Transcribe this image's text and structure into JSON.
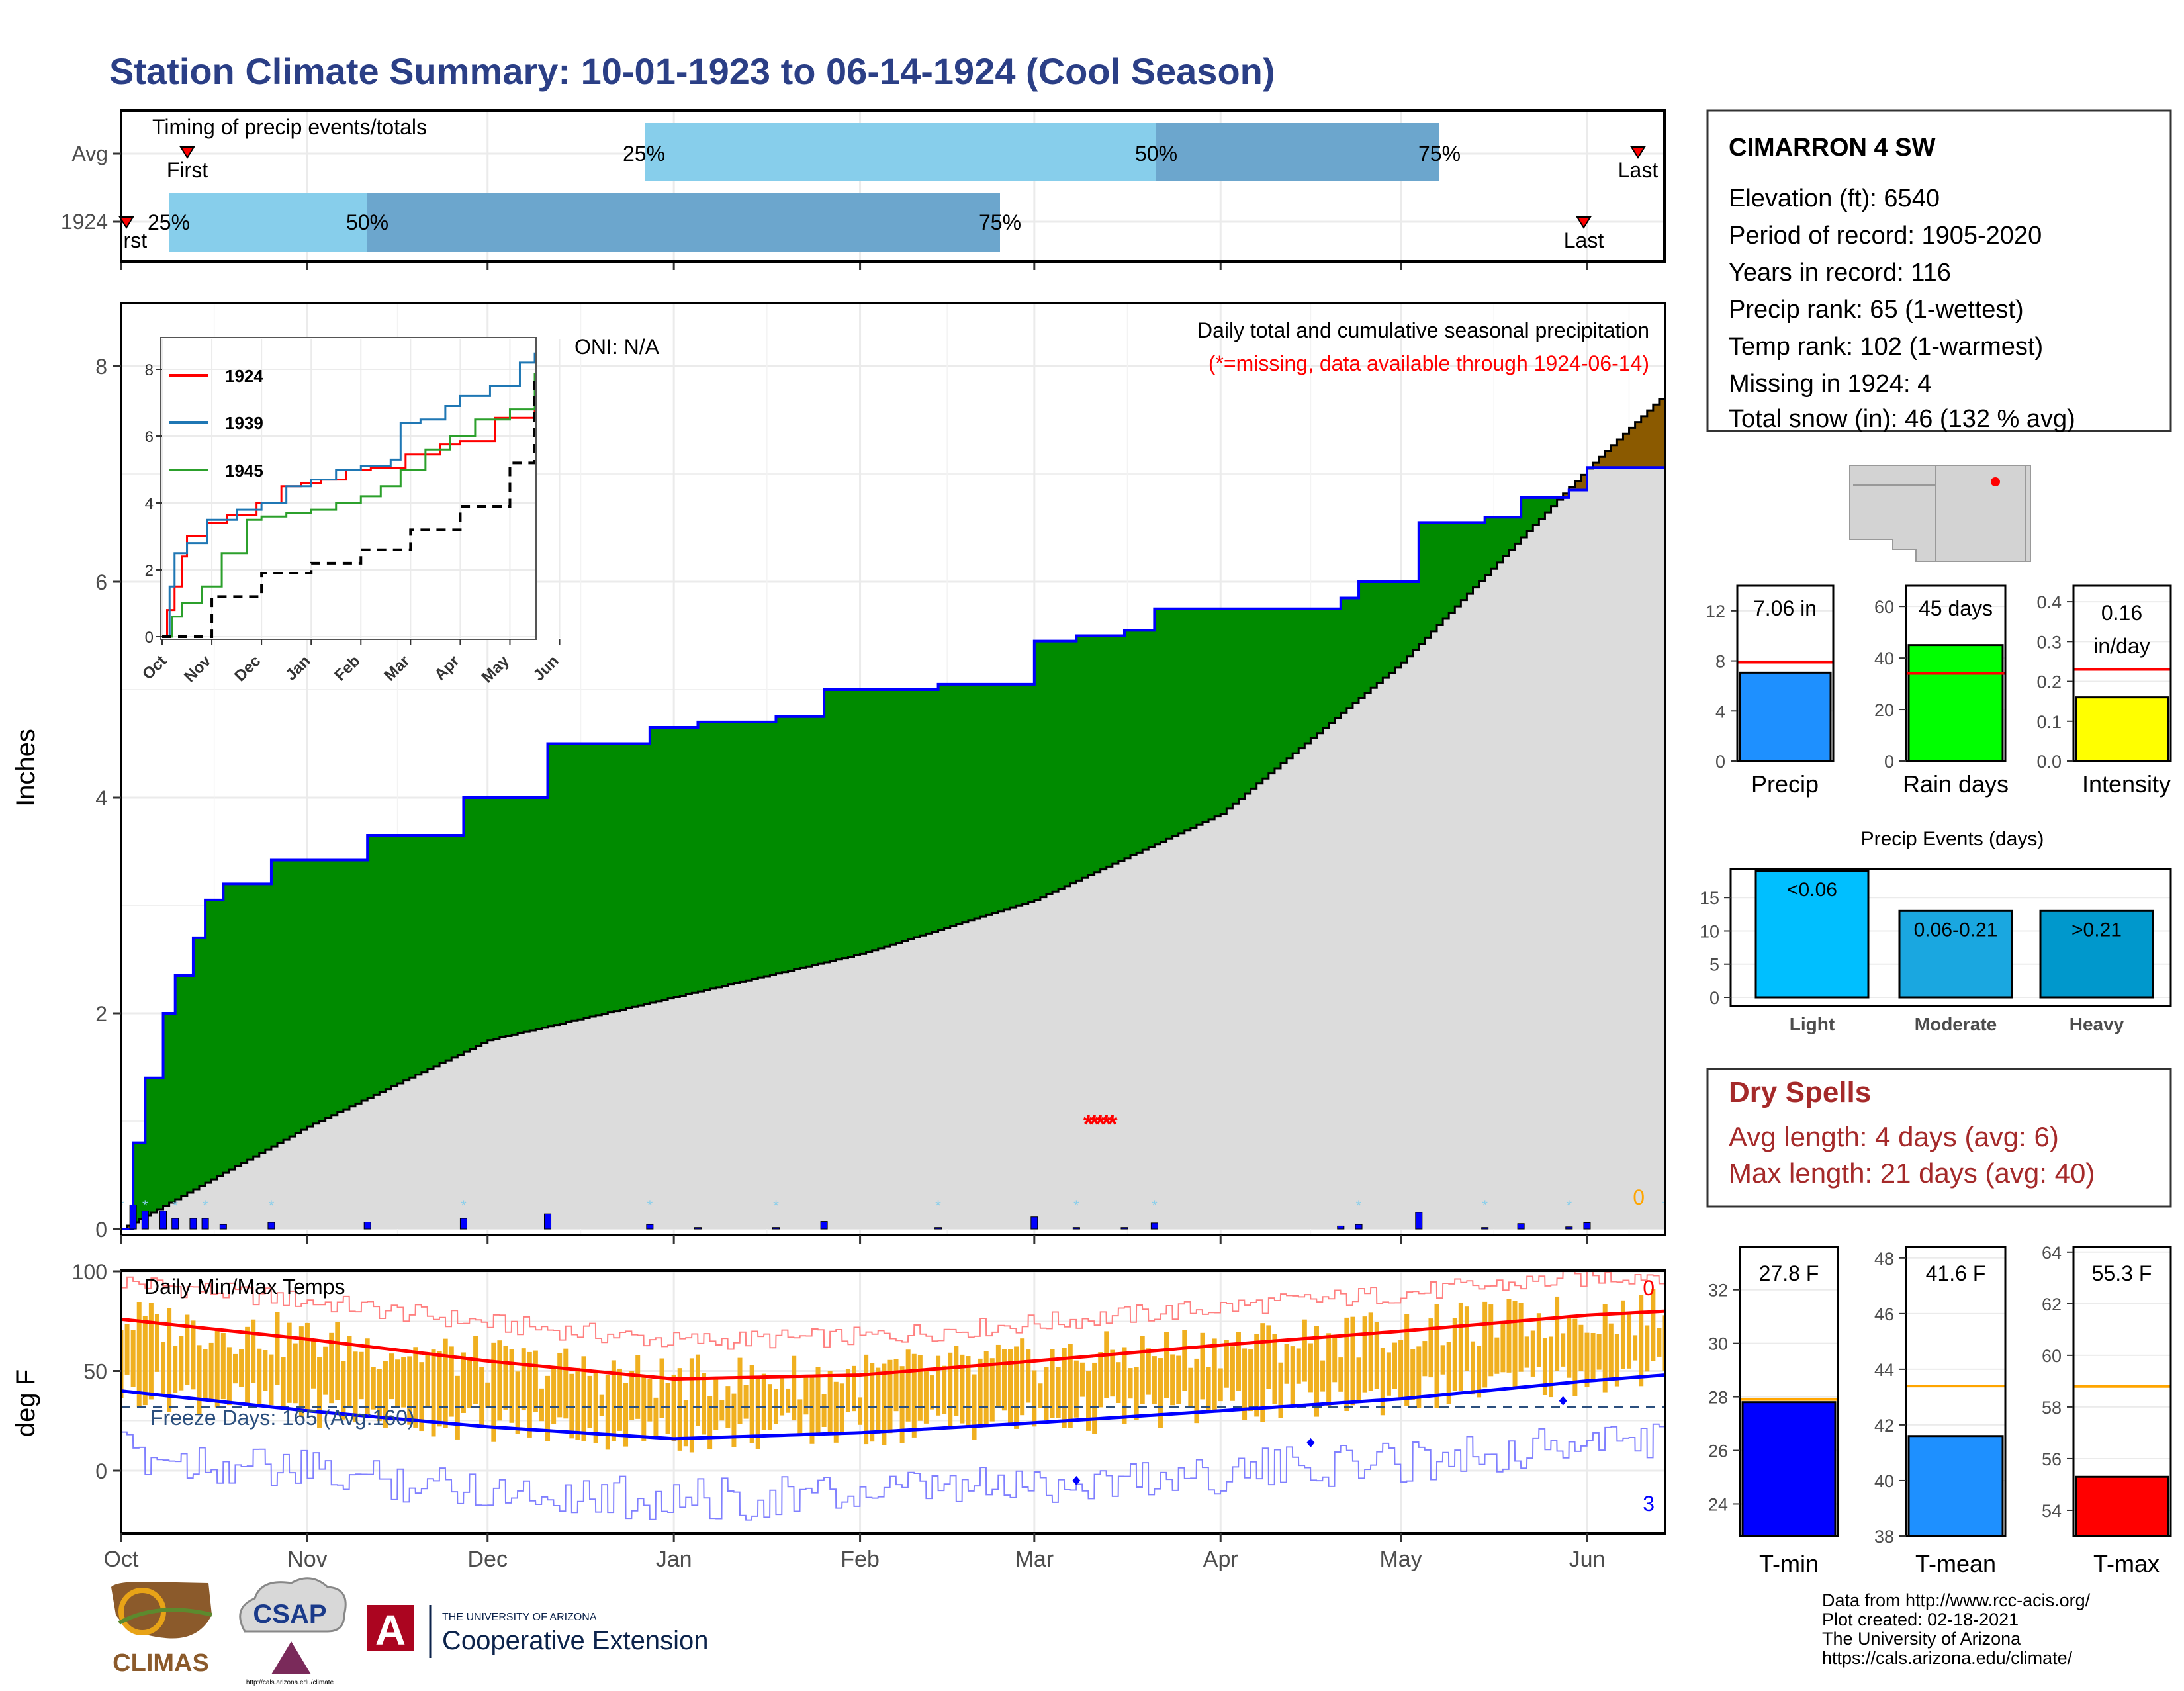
{
  "title": "Station Climate Summary: 10-01-1923 to 06-14-1924 (Cool Season)",
  "colors": {
    "title": "#2b3f86",
    "green": "#008b00",
    "grey_fill": "#dcdcdc",
    "brown": "#8b5a00",
    "blue_line": "#0000ff",
    "light_blue": "#87ceeb",
    "mid_blue": "#6ca6cd",
    "orange_bar": "#f0b020",
    "red": "#ff0000",
    "dark_red": "#a52a2a",
    "precip_bar": "#1e90ff",
    "raindays_bar": "#00ff00",
    "intensity_bar": "#ffff00",
    "tmin_bar": "#0000ff",
    "tmean_bar": "#1e90ff",
    "tmax_bar": "#ff0000",
    "light_events": "#00bfff",
    "moderate_events": "#1aa7e0",
    "heavy_events": "#0098cc"
  },
  "timing": {
    "title": "Timing of precip events/totals",
    "rows": [
      "Avg",
      "1924"
    ],
    "avg": {
      "first_label": "First",
      "last_label": "Last",
      "p25": "25%",
      "p50": "50%",
      "p75": "75%"
    },
    "y1924": {
      "first_label": "First",
      "last_label": "Last",
      "p25": "25%",
      "p50": "50%",
      "p75": "75%"
    }
  },
  "station": {
    "name": "CIMARRON 4 SW",
    "lines": [
      "Elevation (ft): 6540",
      "Period of record: 1905-2020",
      "Years in record: 116",
      "Precip rank: 65 (1-wettest)",
      "Temp rank: 102 (1-warmest)",
      "Missing in 1924: 4",
      "Total snow (in): 46 (132 % avg)"
    ]
  },
  "main": {
    "oni": "ONI: N/A",
    "caption": "Daily total and cumulative seasonal precipitation",
    "missing_note": "(*=missing, data available through 1924-06-14)",
    "ylabel": "Inches",
    "yticks": [
      "0",
      "2",
      "4",
      "6",
      "8"
    ],
    "zero_label": "0",
    "inset": {
      "legend": [
        "1924",
        "1939",
        "1945"
      ],
      "yticks": [
        "0",
        "2",
        "4",
        "6",
        "8"
      ],
      "xticks": [
        "Oct",
        "Nov",
        "Dec",
        "Jan",
        "Feb",
        "Mar",
        "Apr",
        "May",
        "Jun"
      ]
    }
  },
  "temps": {
    "title": "Daily Min/Max Temps",
    "freeze": "Freeze Days: 165 (Avg:160)",
    "ylabel": "deg F",
    "yticks": [
      "0",
      "50",
      "100"
    ],
    "top_count": "0",
    "bottom_count": "3"
  },
  "months": [
    "Oct",
    "Nov",
    "Dec",
    "Jan",
    "Feb",
    "Mar",
    "Apr",
    "May",
    "Jun"
  ],
  "mini_bars": {
    "precip": {
      "value_label": "7.06 in",
      "label": "Precip",
      "yticks": [
        "0",
        "4",
        "8",
        "12"
      ]
    },
    "raindays": {
      "value_label": "45 days",
      "label": "Rain days",
      "yticks": [
        "0",
        "20",
        "40",
        "60"
      ]
    },
    "intensity": {
      "value_label_1": "0.16",
      "value_label_2": "in/day",
      "label": "Intensity",
      "yticks": [
        "0.0",
        "0.1",
        "0.2",
        "0.3",
        "0.4"
      ]
    }
  },
  "events": {
    "title": "Precip Events (days)",
    "categories": [
      "Light",
      "Moderate",
      "Heavy"
    ],
    "bar_labels": [
      "<0.06",
      "0.06-0.21",
      ">0.21"
    ],
    "yticks": [
      "0",
      "5",
      "10",
      "15"
    ]
  },
  "dry": {
    "title": "Dry Spells",
    "avg": "Avg length: 4 days (avg: 6)",
    "max": "Max length: 21 days (avg: 40)"
  },
  "temp_bars": {
    "tmin": {
      "value_label": "27.8 F",
      "label": "T-min",
      "yticks": [
        "24",
        "26",
        "28",
        "30",
        "32"
      ]
    },
    "tmean": {
      "value_label": "41.6 F",
      "label": "T-mean",
      "yticks": [
        "38",
        "40",
        "42",
        "44",
        "46",
        "48"
      ]
    },
    "tmax": {
      "value_label": "55.3 F",
      "label": "T-max",
      "yticks": [
        "54",
        "56",
        "58",
        "60",
        "62",
        "64"
      ]
    }
  },
  "logos": {
    "climas": "CLIMAS",
    "csap": "CSAP",
    "csap_url": "http://cals.arizona.edu/climate",
    "ua_small": "THE UNIVERSITY OF ARIZONA",
    "ua_big": "Cooperative Extension"
  },
  "footer": [
    "Data from http://www.rcc-acis.org/",
    "Plot created: 02-18-2021",
    "The University of Arizona",
    "https://cals.arizona.edu/climate/"
  ],
  "chart_data": [
    {
      "type": "line",
      "title": "Daily total and cumulative seasonal precipitation",
      "ylabel": "Inches",
      "ylim": [
        0,
        8.5
      ],
      "x_start": "1923-10-01",
      "x_end": "1924-06-14",
      "series": [
        {
          "name": "1924",
          "x": [
            "1923-10-01",
            "1923-10-03",
            "1923-10-05",
            "1923-10-08",
            "1923-10-10",
            "1923-10-13",
            "1923-10-15",
            "1923-10-18",
            "1923-10-26",
            "1923-11-11",
            "1923-11-27",
            "1923-12-11",
            "1923-12-28",
            "1924-01-05",
            "1924-01-18",
            "1924-01-26",
            "1924-02-14",
            "1924-03-01",
            "1924-03-08",
            "1924-03-16",
            "1924-03-21",
            "1924-04-21",
            "1924-04-24",
            "1924-05-04",
            "1924-05-15",
            "1924-05-21",
            "1924-05-29",
            "1924-06-01",
            "1924-06-14"
          ],
          "values": [
            0.0,
            0.8,
            1.4,
            2.0,
            2.35,
            2.7,
            3.05,
            3.2,
            3.42,
            3.65,
            4.0,
            4.5,
            4.65,
            4.7,
            4.75,
            5.0,
            5.05,
            5.45,
            5.5,
            5.55,
            5.75,
            5.85,
            6.0,
            6.55,
            6.6,
            6.78,
            6.85,
            7.06,
            7.06
          ]
        },
        {
          "name": "Average",
          "x": [
            "1923-10-01",
            "1923-11-01",
            "1923-12-01",
            "1924-01-01",
            "1924-02-01",
            "1924-03-01",
            "1924-04-01",
            "1924-05-01",
            "1924-06-01",
            "1924-06-14"
          ],
          "values": [
            0.0,
            0.95,
            1.75,
            2.15,
            2.55,
            3.05,
            3.85,
            5.25,
            7.05,
            7.75
          ]
        }
      ],
      "missing_dates": [
        "1924-03-10",
        "1924-03-11",
        "1924-03-12",
        "1924-03-13",
        "1924-03-14"
      ]
    },
    {
      "type": "line",
      "title": "Inset cumulative precipitation",
      "ylim": [
        0,
        8.5
      ],
      "series": [
        {
          "name": "1924",
          "x": [
            0,
            0.1,
            0.25,
            0.4,
            0.5,
            0.9,
            1.3,
            1.9,
            2.4,
            2.8,
            3.2,
            3.7,
            4.2,
            4.9,
            5.6,
            6.0,
            6.7,
            7.5
          ],
          "values": [
            0,
            0.8,
            1.5,
            2.4,
            3.0,
            3.4,
            3.65,
            4.0,
            4.5,
            4.6,
            4.7,
            5.0,
            5.05,
            5.45,
            5.75,
            5.85,
            6.55,
            7.06
          ]
        },
        {
          "name": "1939",
          "x": [
            0,
            0.15,
            0.25,
            0.5,
            0.9,
            1.5,
            2.0,
            2.5,
            3.0,
            3.5,
            4.0,
            4.6,
            4.8,
            5.2,
            5.7,
            6.0,
            6.6,
            7.2,
            7.5
          ],
          "values": [
            0,
            1.5,
            2.5,
            2.8,
            3.5,
            3.8,
            4.0,
            4.5,
            4.7,
            5.0,
            5.1,
            5.3,
            6.4,
            6.5,
            6.9,
            7.2,
            7.5,
            8.2,
            8.5
          ]
        },
        {
          "name": "1945",
          "x": [
            0,
            0.2,
            0.4,
            0.8,
            1.2,
            1.7,
            2.0,
            2.5,
            3.0,
            3.5,
            4.0,
            4.4,
            4.8,
            5.3,
            5.8,
            6.3,
            7.0,
            7.5
          ],
          "values": [
            0,
            0.6,
            1.0,
            1.5,
            2.5,
            3.5,
            3.6,
            3.7,
            3.8,
            4.0,
            4.2,
            4.5,
            5.0,
            5.6,
            6.0,
            6.5,
            6.8,
            7.9
          ]
        },
        {
          "name": "Average",
          "x": [
            0,
            1,
            2,
            3,
            4,
            5,
            6,
            7,
            7.5
          ],
          "values": [
            0,
            1.2,
            1.9,
            2.2,
            2.6,
            3.2,
            3.9,
            5.2,
            7.7
          ]
        }
      ],
      "xticks": [
        "Oct",
        "Nov",
        "Dec",
        "Jan",
        "Feb",
        "Mar",
        "Apr",
        "May",
        "Jun"
      ]
    },
    {
      "type": "bar",
      "title": "Precip",
      "categories": [
        "Precip"
      ],
      "values": [
        7.06
      ],
      "average": 7.9,
      "ylim": [
        0,
        14
      ]
    },
    {
      "type": "bar",
      "title": "Rain days",
      "categories": [
        "Rain days"
      ],
      "values": [
        45
      ],
      "average": 34,
      "ylim": [
        0,
        68
      ]
    },
    {
      "type": "bar",
      "title": "Intensity",
      "categories": [
        "Intensity"
      ],
      "values": [
        0.16
      ],
      "average": 0.23,
      "ylim": [
        0,
        0.44
      ]
    },
    {
      "type": "bar",
      "title": "Precip Events (days)",
      "categories": [
        "Light",
        "Moderate",
        "Heavy"
      ],
      "values": [
        19,
        13,
        13
      ],
      "ylim": [
        0,
        19
      ]
    },
    {
      "type": "bar",
      "title": "T-min",
      "categories": [
        "T-min"
      ],
      "values": [
        27.8
      ],
      "average": 27.9,
      "ylim": [
        22.8,
        33.6
      ]
    },
    {
      "type": "bar",
      "title": "T-mean",
      "categories": [
        "T-mean"
      ],
      "values": [
        41.6
      ],
      "average": 43.4,
      "ylim": [
        38,
        48.4
      ]
    },
    {
      "type": "bar",
      "title": "T-max",
      "categories": [
        "T-max"
      ],
      "values": [
        55.3
      ],
      "average": 58.8,
      "ylim": [
        53,
        64.2
      ]
    },
    {
      "type": "area",
      "title": "Daily Min/Max Temps",
      "ylabel": "deg F",
      "ylim": [
        -33,
        100
      ],
      "freeze_threshold": 32,
      "avg_max_x": [
        "1923-10-01",
        "1923-11-01",
        "1923-12-01",
        "1924-01-01",
        "1924-02-01",
        "1924-03-01",
        "1924-04-01",
        "1924-05-01",
        "1924-06-01",
        "1924-06-14"
      ],
      "avg_max": [
        76,
        66,
        55,
        46,
        48,
        55,
        63,
        70,
        78,
        80
      ],
      "avg_min_x": [
        "1923-10-01",
        "1923-11-01",
        "1923-12-01",
        "1924-01-01",
        "1924-02-01",
        "1924-03-01",
        "1924-04-01",
        "1924-05-01",
        "1924-06-01",
        "1924-06-14"
      ],
      "avg_min": [
        40,
        30,
        22,
        16,
        19,
        24,
        30,
        36,
        45,
        48
      ]
    }
  ]
}
